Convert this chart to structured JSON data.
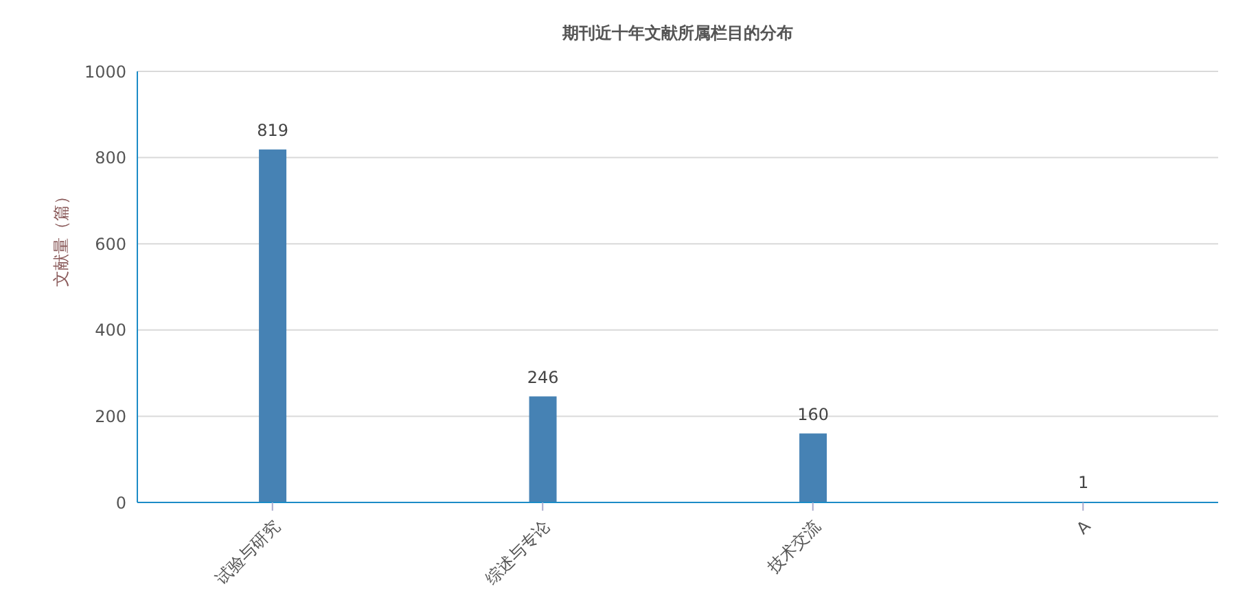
{
  "chart_data": {
    "type": "bar",
    "title": "期刊近十年文献所属栏目的分布",
    "ylabel": "文献量（篇）",
    "categories": [
      "试验与研究",
      "综述与专论",
      "技术交流",
      "A"
    ],
    "values": [
      819,
      246,
      160,
      1
    ],
    "color": "#4682b4",
    "ylim": [
      0,
      1000
    ],
    "yticks": [
      0,
      200,
      400,
      600,
      800,
      1000
    ],
    "grid": "y",
    "data_labels": true
  }
}
